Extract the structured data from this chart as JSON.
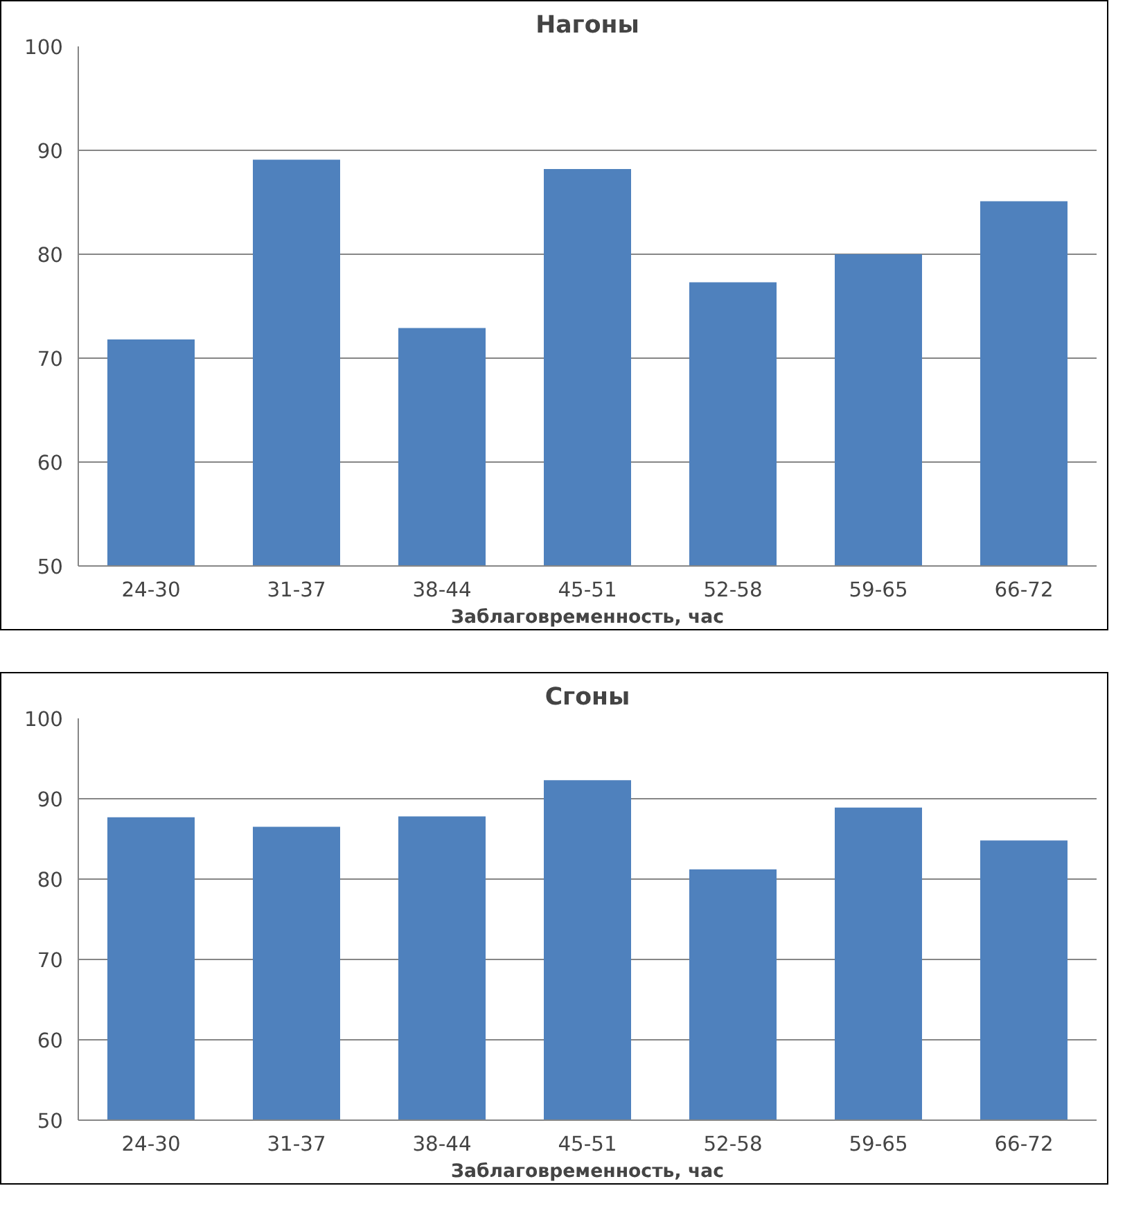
{
  "chart_data": [
    {
      "type": "bar",
      "title": "Нагоны",
      "xlabel": "Заблаговременность, час",
      "categories": [
        "24-30",
        "31-37",
        "38-44",
        "45-51",
        "52-58",
        "59-65",
        "66-72"
      ],
      "values": [
        71.8,
        89.1,
        72.9,
        88.2,
        77.3,
        80.0,
        85.1
      ],
      "color": "#4f81bd",
      "ylim": [
        50,
        100
      ],
      "yticks": [
        50,
        60,
        70,
        80,
        90,
        100
      ],
      "grid": "y"
    },
    {
      "type": "bar",
      "title": "Сгоны",
      "xlabel": "Заблаговременность, час",
      "categories": [
        "24-30",
        "31-37",
        "38-44",
        "45-51",
        "52-58",
        "59-65",
        "66-72"
      ],
      "values": [
        87.7,
        86.5,
        87.8,
        92.3,
        81.2,
        88.9,
        84.8
      ],
      "color": "#4f81bd",
      "ylim": [
        50,
        100
      ],
      "yticks": [
        50,
        60,
        70,
        80,
        90,
        100
      ],
      "grid": "y"
    }
  ]
}
